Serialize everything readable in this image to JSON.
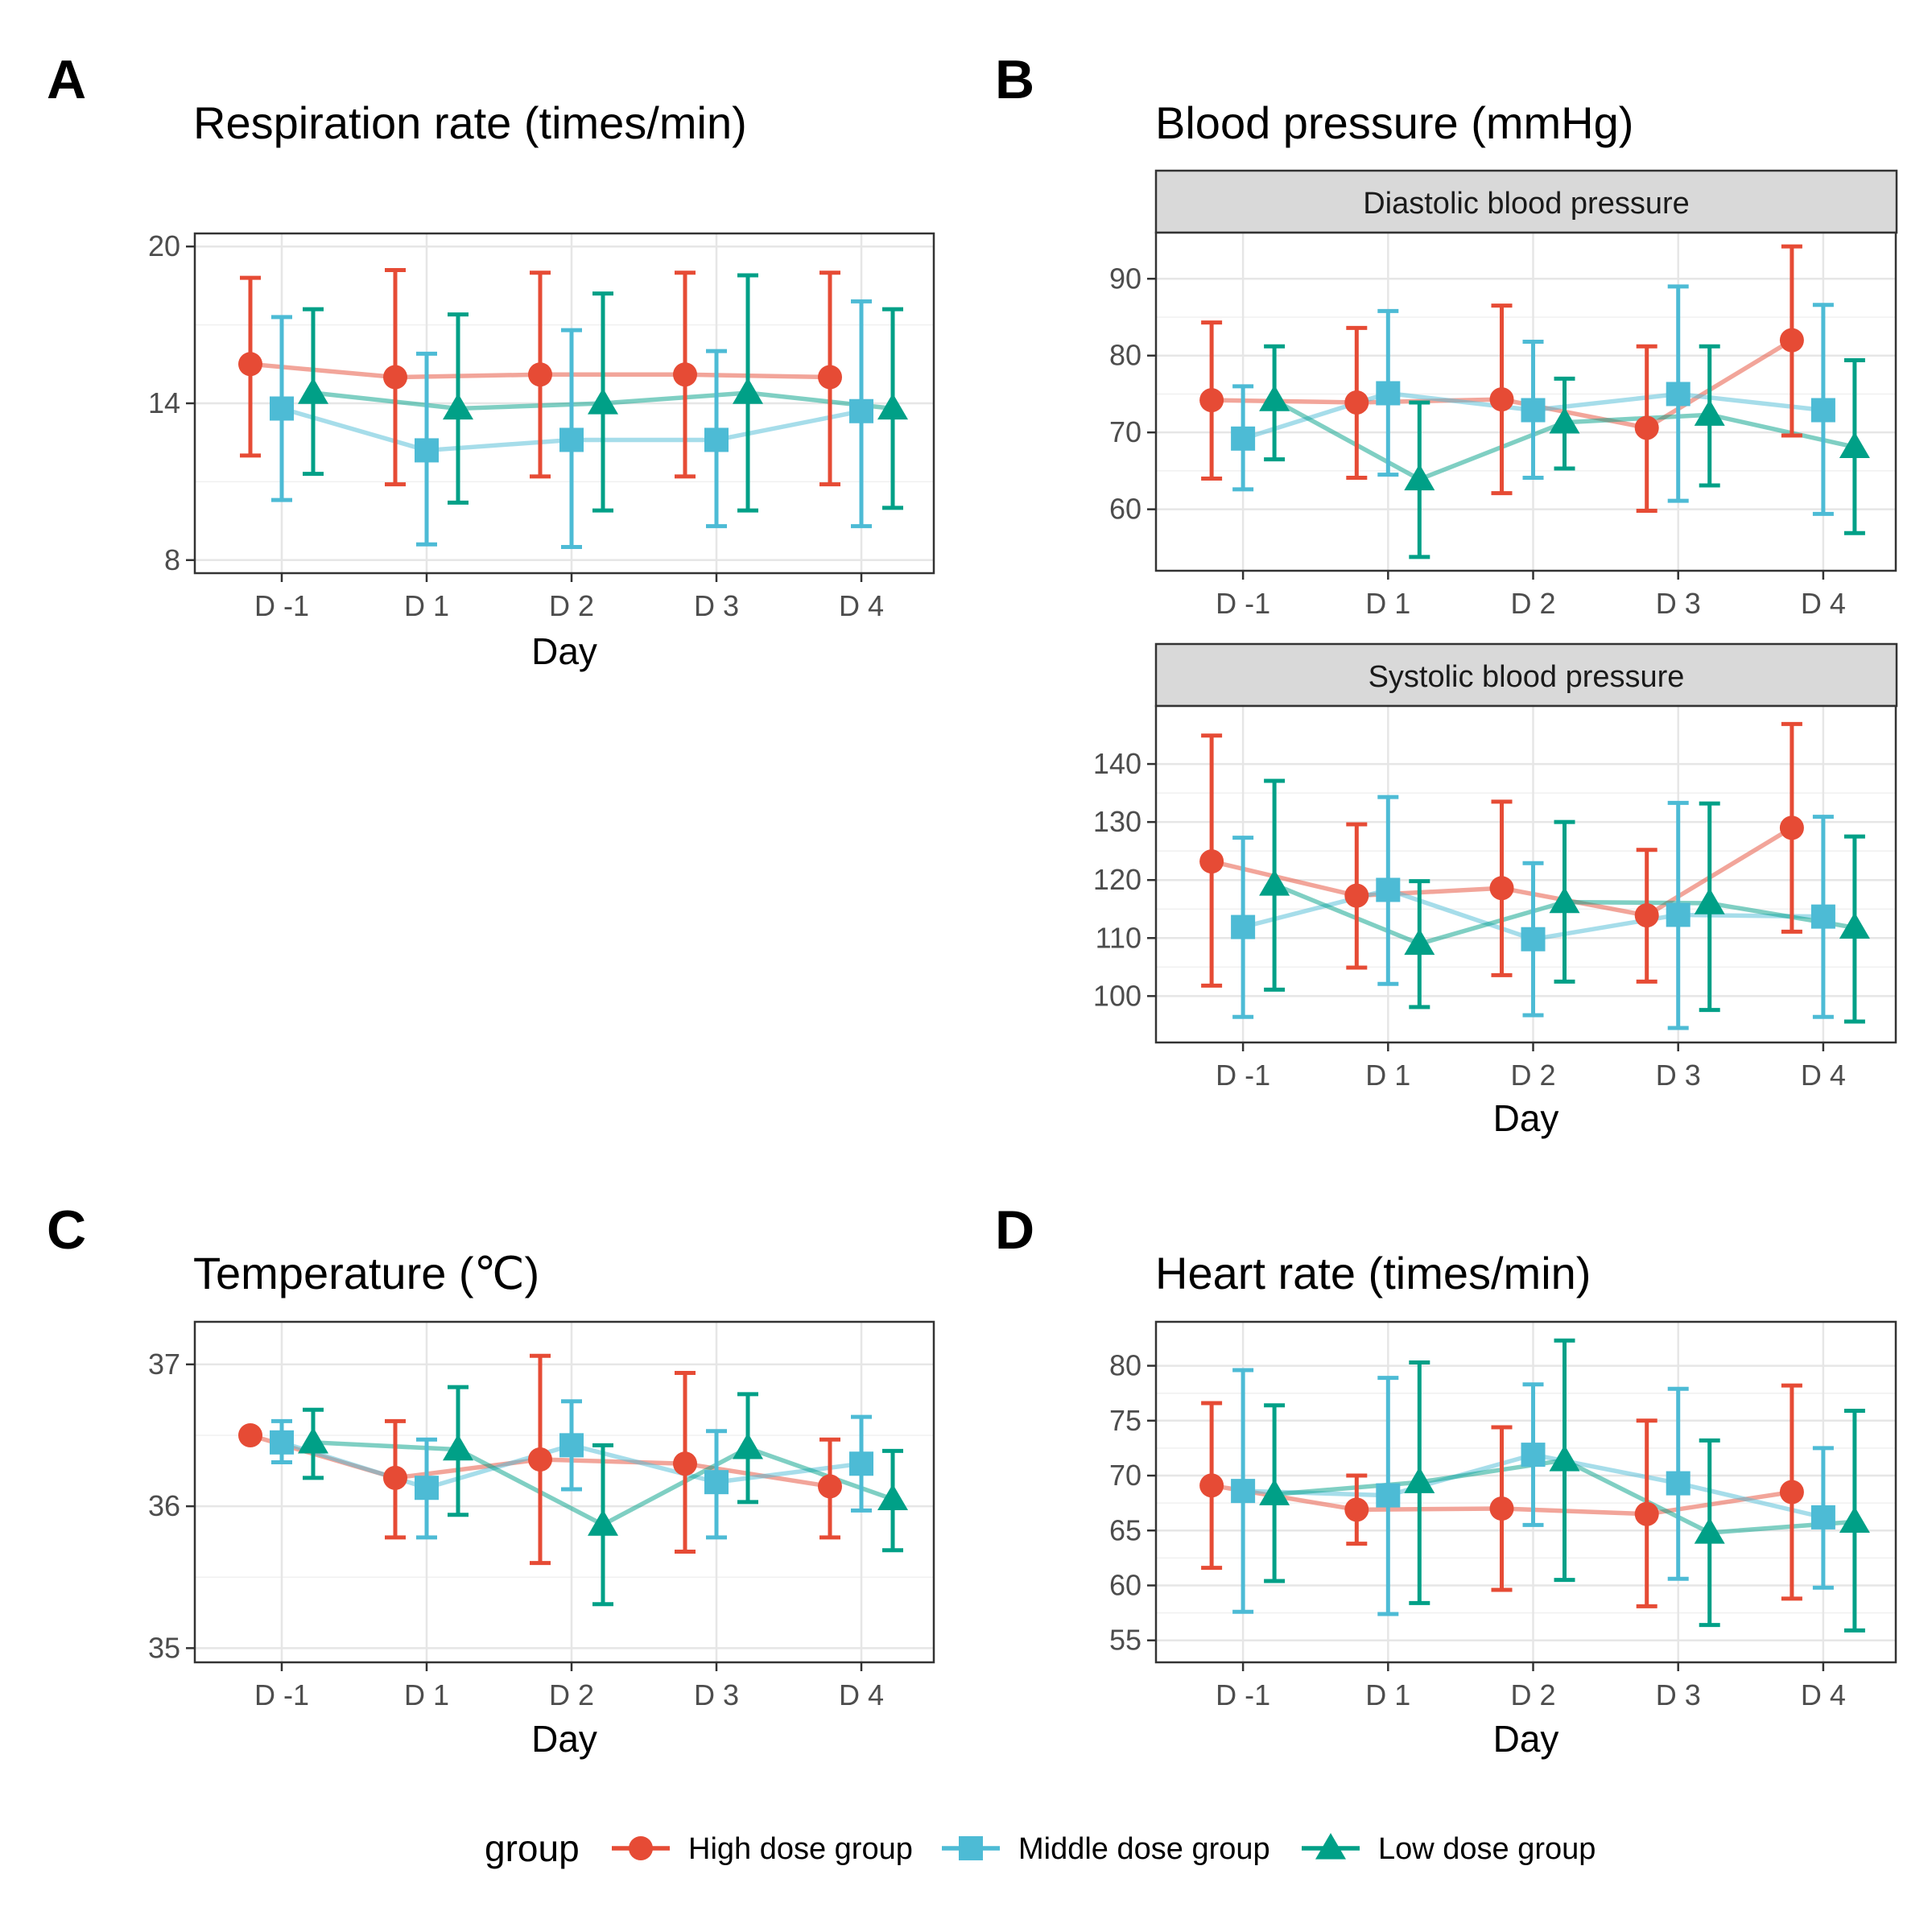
{
  "figure": {
    "panel_letters": [
      "A",
      "B",
      "C",
      "D"
    ],
    "xlabel": "Day",
    "categories": [
      "D -1",
      "D 1",
      "D 2",
      "D 3",
      "D 4"
    ]
  },
  "legend": {
    "title": "group",
    "placement": "bottom",
    "entries": [
      {
        "name": "High dose group",
        "color": "#E64B35",
        "shape": "circle"
      },
      {
        "name": "Middle dose group",
        "color": "#4DBBD5",
        "shape": "square"
      },
      {
        "name": "Low dose group",
        "color": "#00A087",
        "shape": "triangle"
      }
    ]
  },
  "chart_data": [
    {
      "panel": "A",
      "type": "line",
      "title": "Respiration rate (times/min)",
      "xlabel": "Day",
      "categories": [
        "D -1",
        "D 1",
        "D 2",
        "D 3",
        "D 4"
      ],
      "ylim": [
        7.5,
        20.5
      ],
      "yticks": [
        8,
        14,
        20
      ],
      "grid": true,
      "series": [
        {
          "name": "High dose group",
          "color": "#E64B35",
          "shape": "circle",
          "values": [
            15.5,
            15.0,
            15.1,
            15.1,
            15.0
          ],
          "lower": [
            12.0,
            10.9,
            11.2,
            11.2,
            10.9
          ],
          "upper": [
            18.8,
            19.1,
            19.0,
            19.0,
            19.0
          ]
        },
        {
          "name": "Middle dose group",
          "color": "#4DBBD5",
          "shape": "square",
          "values": [
            13.8,
            12.2,
            12.6,
            12.6,
            13.7
          ],
          "lower": [
            10.3,
            8.6,
            8.5,
            9.3,
            9.3
          ],
          "upper": [
            17.3,
            15.9,
            16.8,
            16.0,
            17.9
          ]
        },
        {
          "name": "Low dose group",
          "color": "#00A087",
          "shape": "triangle",
          "values": [
            14.4,
            13.8,
            14.0,
            14.4,
            13.8
          ],
          "lower": [
            11.3,
            10.2,
            9.9,
            9.9,
            10.0
          ],
          "upper": [
            17.6,
            17.4,
            18.2,
            18.9,
            17.6
          ]
        }
      ]
    },
    {
      "panel": "B",
      "type": "line",
      "title": "Blood pressure (mmHg)",
      "facet": "Diastolic blood pressure",
      "xlabel": "",
      "categories": [
        "D -1",
        "D 1",
        "D 2",
        "D 3",
        "D 4"
      ],
      "ylim": [
        52,
        96
      ],
      "yticks": [
        60,
        70,
        80,
        90
      ],
      "grid": true,
      "series": [
        {
          "name": "High dose group",
          "color": "#E64B35",
          "shape": "circle",
          "values": [
            74.2,
            73.9,
            74.3,
            70.6,
            82.0
          ],
          "lower": [
            64.0,
            64.1,
            62.1,
            59.8,
            69.6
          ],
          "upper": [
            84.3,
            83.6,
            86.5,
            81.2,
            94.2
          ]
        },
        {
          "name": "Middle dose group",
          "color": "#4DBBD5",
          "shape": "square",
          "values": [
            69.2,
            75.1,
            72.9,
            75.0,
            72.9
          ],
          "lower": [
            62.6,
            64.5,
            64.1,
            61.1,
            59.4
          ],
          "upper": [
            76.0,
            85.8,
            81.8,
            89.0,
            86.6
          ]
        },
        {
          "name": "Low dose group",
          "color": "#00A087",
          "shape": "triangle",
          "values": [
            74.2,
            63.9,
            71.3,
            72.3,
            68.1
          ],
          "lower": [
            66.5,
            53.8,
            65.3,
            63.1,
            56.9
          ],
          "upper": [
            81.2,
            73.9,
            77.0,
            81.2,
            79.4
          ]
        }
      ]
    },
    {
      "panel": "B",
      "type": "line",
      "facet": "Systolic blood pressure",
      "xlabel": "Day",
      "categories": [
        "D -1",
        "D 1",
        "D 2",
        "D 3",
        "D 4"
      ],
      "ylim": [
        92,
        150
      ],
      "yticks": [
        100,
        110,
        120,
        130,
        140
      ],
      "grid": true,
      "series": [
        {
          "name": "High dose group",
          "color": "#E64B35",
          "shape": "circle",
          "values": [
            123.2,
            117.3,
            118.6,
            113.9,
            129.0
          ],
          "lower": [
            101.8,
            104.9,
            103.6,
            102.5,
            111.1
          ],
          "upper": [
            144.9,
            129.6,
            133.5,
            125.2,
            146.9
          ]
        },
        {
          "name": "Middle dose group",
          "color": "#4DBBD5",
          "shape": "square",
          "values": [
            111.9,
            118.3,
            109.8,
            114.0,
            113.7
          ],
          "lower": [
            96.4,
            102.1,
            96.7,
            94.5,
            96.4
          ],
          "upper": [
            127.3,
            134.3,
            122.9,
            133.3,
            130.9
          ]
        },
        {
          "name": "Low dose group",
          "color": "#00A087",
          "shape": "triangle",
          "values": [
            119.2,
            109.0,
            116.2,
            116.0,
            111.8
          ],
          "lower": [
            101.1,
            98.1,
            102.5,
            97.6,
            95.6
          ],
          "upper": [
            137.1,
            119.8,
            130.0,
            133.2,
            127.5
          ]
        }
      ]
    },
    {
      "panel": "C",
      "type": "line",
      "title": "Temperature (℃)",
      "xlabel": "Day",
      "categories": [
        "D -1",
        "D 1",
        "D 2",
        "D 3",
        "D 4"
      ],
      "ylim": [
        34.9,
        37.3
      ],
      "yticks": [
        35,
        36,
        37
      ],
      "grid": true,
      "series": [
        {
          "name": "High dose group",
          "color": "#E64B35",
          "shape": "circle",
          "values": [
            36.5,
            36.2,
            36.33,
            36.3,
            36.14
          ],
          "lower": [
            36.5,
            35.78,
            35.6,
            35.68,
            35.78
          ],
          "upper": [
            36.5,
            36.6,
            37.06,
            36.94,
            36.47
          ]
        },
        {
          "name": "Middle dose group",
          "color": "#4DBBD5",
          "shape": "square",
          "values": [
            36.45,
            36.13,
            36.43,
            36.17,
            36.3
          ],
          "lower": [
            36.31,
            35.78,
            36.12,
            35.78,
            35.97
          ],
          "upper": [
            36.6,
            36.47,
            36.74,
            36.53,
            36.63
          ]
        },
        {
          "name": "Low dose group",
          "color": "#00A087",
          "shape": "triangle",
          "values": [
            36.45,
            36.4,
            35.87,
            36.41,
            36.05
          ],
          "lower": [
            36.2,
            35.94,
            35.31,
            36.03,
            35.69
          ],
          "upper": [
            36.68,
            36.84,
            36.43,
            36.79,
            36.39
          ]
        }
      ]
    },
    {
      "panel": "D",
      "type": "line",
      "title": "Heart rate (times/min)",
      "xlabel": "Day",
      "categories": [
        "D -1",
        "D 1",
        "D 2",
        "D 3",
        "D 4"
      ],
      "ylim": [
        53,
        84
      ],
      "yticks": [
        55,
        60,
        65,
        70,
        75,
        80
      ],
      "grid": true,
      "series": [
        {
          "name": "High dose group",
          "color": "#E64B35",
          "shape": "circle",
          "values": [
            69.1,
            66.9,
            67.0,
            66.5,
            68.5
          ],
          "lower": [
            61.6,
            63.8,
            59.6,
            58.1,
            58.8
          ],
          "upper": [
            76.6,
            70.0,
            74.4,
            75.0,
            78.2
          ]
        },
        {
          "name": "Middle dose group",
          "color": "#4DBBD5",
          "shape": "square",
          "values": [
            68.6,
            68.2,
            71.9,
            69.3,
            66.2
          ],
          "lower": [
            57.6,
            57.4,
            65.5,
            60.6,
            59.8
          ],
          "upper": [
            79.6,
            78.9,
            78.3,
            77.9,
            72.5
          ]
        },
        {
          "name": "Low dose group",
          "color": "#00A087",
          "shape": "triangle",
          "values": [
            68.3,
            69.4,
            71.4,
            64.8,
            65.8
          ],
          "lower": [
            60.4,
            58.4,
            60.5,
            56.4,
            55.9
          ],
          "upper": [
            76.4,
            80.3,
            82.3,
            73.2,
            75.9
          ]
        }
      ]
    }
  ]
}
